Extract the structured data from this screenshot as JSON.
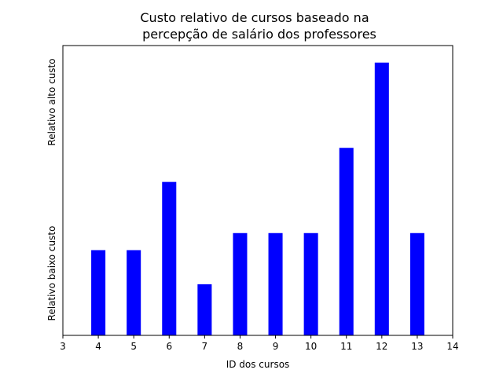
{
  "chart_data": {
    "type": "bar",
    "title": [
      "Custo relativo de cursos baseado na",
      "percepção de salário dos professores"
    ],
    "xlabel": "ID dos cursos",
    "ylabel_low": "Relativo baixo custo",
    "ylabel_high": "Relativo alto custo",
    "xlim": [
      3,
      14
    ],
    "ylim": [
      0,
      17
    ],
    "x_ticks": [
      3,
      4,
      5,
      6,
      7,
      8,
      9,
      10,
      11,
      12,
      13,
      14
    ],
    "y_ticks": [],
    "grid": false,
    "bar_color": "#0000ff",
    "x": [
      4,
      5,
      6,
      7,
      8,
      9,
      10,
      11,
      12,
      13
    ],
    "values": [
      5,
      5,
      9,
      3,
      6,
      6,
      6,
      11,
      16,
      6
    ]
  }
}
